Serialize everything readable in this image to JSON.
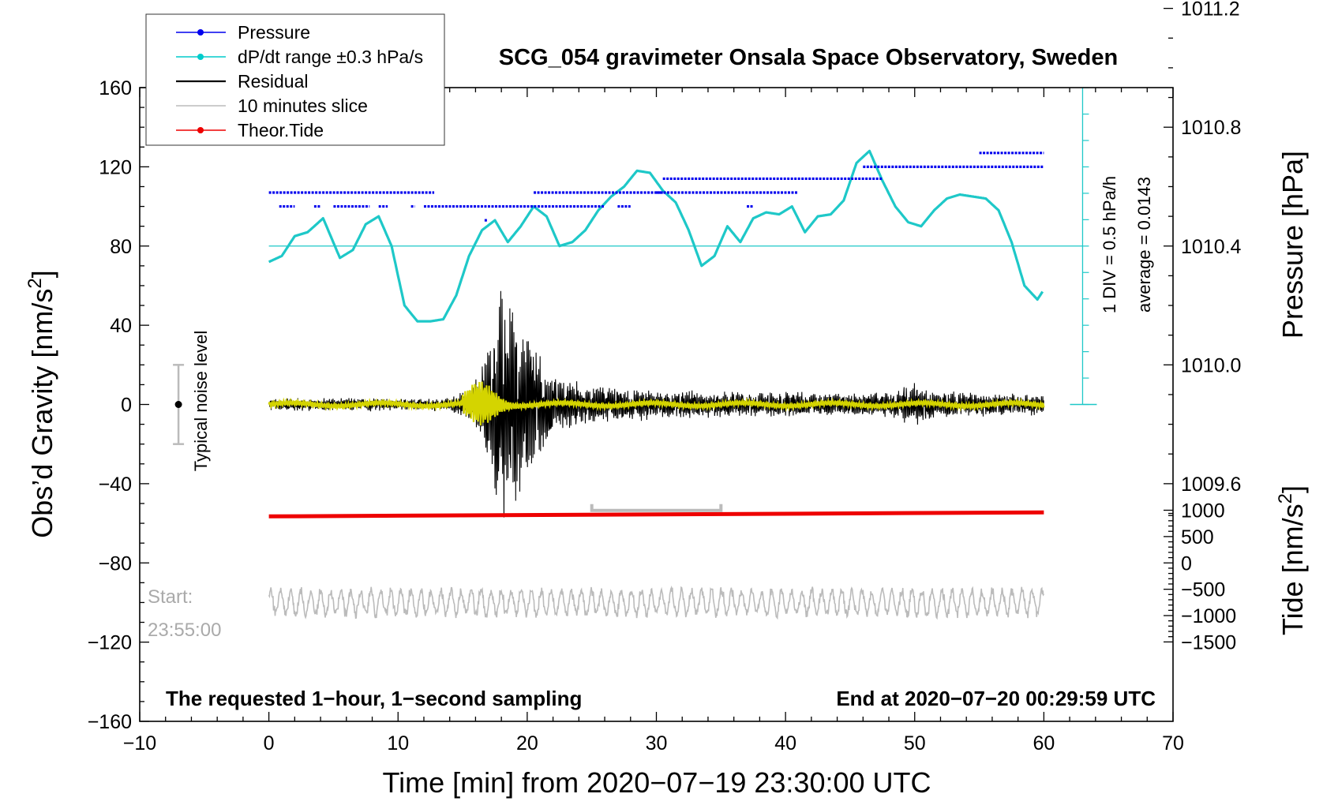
{
  "chart_data": {
    "type": "line",
    "title": "SCG_054 gravimeter Onsala Space Observatory, Sweden",
    "xlabel": "Time [min] from 2020−07−19 23:30:00 UTC",
    "ylabel_left": "Obs'd Gravity [nm/s²]",
    "ylabel_left_main": "Obs’d Gravity [nm/s",
    "ylabel_right_top": "Pressure [hPa]",
    "ylabel_right_bottom_main": "Tide [nm/s",
    "ylabel_right_bottom": "Tide [nm/s²]",
    "superscript": "2",
    "bracket_close": "]",
    "xlim": [
      -10,
      70
    ],
    "ylim_left": [
      -160,
      160
    ],
    "x_ticks": [
      "−10",
      "0",
      "10",
      "20",
      "30",
      "40",
      "50",
      "60",
      "70"
    ],
    "y_ticks_left": [
      "160",
      "120",
      "80",
      "40",
      "0",
      "−40",
      "−80",
      "−120",
      "−160"
    ],
    "pressure_ticks": [
      "1011.2",
      "1010.8",
      "1010.4",
      "1010.0",
      "1009.6"
    ],
    "tide_ticks": [
      "1000",
      "500",
      "0",
      "−500",
      "−1000",
      "−1500"
    ],
    "dpdt_scale_label": "1 DIV = 0.5 hPa/h",
    "dpdt_average_label": "average = 0.0143",
    "noise_label": "Typical noise level",
    "start_label_1": "Start:",
    "start_label_2": "23:55:00",
    "footer_left": "The requested 1−hour, 1−second sampling",
    "footer_right": "End at 2020−07−20 00:29:59 UTC",
    "legend": [
      {
        "label": "Pressure",
        "color": "#0000ee",
        "marker": true
      },
      {
        "label": "dP/dt range ±0.3 hPa/s",
        "color": "#00cccc",
        "marker": true
      },
      {
        "label": "Residual",
        "color": "#000000",
        "marker": false
      },
      {
        "label": "10 minutes slice",
        "color": "#bbbbbb",
        "marker": false
      },
      {
        "label": "Theor.Tide",
        "color": "#ee0000",
        "marker": true
      }
    ],
    "colors": {
      "pressure": "#0000ee",
      "dpdt": "#1ec8c8",
      "residual": "#000000",
      "filtered": "#d4d400",
      "slice": "#bbbbbb",
      "tide": "#ee0000"
    },
    "series": [
      {
        "name": "Pressure",
        "units": "gravity-axis position (nm/s²)",
        "segments": [
          {
            "x0": 0,
            "x1": 12.8,
            "y": 107
          },
          {
            "x0": 0.8,
            "x1": 2,
            "y": 100
          },
          {
            "x0": 3.5,
            "x1": 4,
            "y": 100
          },
          {
            "x0": 5,
            "x1": 7.8,
            "y": 100
          },
          {
            "x0": 8.5,
            "x1": 9.2,
            "y": 100
          },
          {
            "x0": 11,
            "x1": 11.3,
            "y": 100
          },
          {
            "x0": 12,
            "x1": 26,
            "y": 100
          },
          {
            "x0": 20.5,
            "x1": 30.5,
            "y": 107
          },
          {
            "x0": 27,
            "x1": 28,
            "y": 100
          },
          {
            "x0": 30,
            "x1": 41,
            "y": 107
          },
          {
            "x0": 30.5,
            "x1": 47.5,
            "y": 114
          },
          {
            "x0": 46,
            "x1": 60,
            "y": 120
          },
          {
            "x0": 55,
            "x1": 60,
            "y": 127
          },
          {
            "x0": 37,
            "x1": 37.5,
            "y": 100
          },
          {
            "x0": 16.7,
            "x1": 16.9,
            "y": 93
          }
        ]
      },
      {
        "name": "dP/dt range ±0.3 hPa/s",
        "x": [
          0,
          1,
          2,
          3,
          4.2,
          5.5,
          6.5,
          7.5,
          8.5,
          9.5,
          10.5,
          11.5,
          12.5,
          13.5,
          14.5,
          15.5,
          16.5,
          17.5,
          18.5,
          19.5,
          20.5,
          21.5,
          22.5,
          23.5,
          24.5,
          25.5,
          26.5,
          27.5,
          28.5,
          29.5,
          30.5,
          31.5,
          32.5,
          33.5,
          34.5,
          35.5,
          36.5,
          37.5,
          38.5,
          39.5,
          40.5,
          41.5,
          42.5,
          43.5,
          44.5,
          45.5,
          46.5,
          47.5,
          48.5,
          49.5,
          50.5,
          51.5,
          52.5,
          53.5,
          54.5,
          55.5,
          56.5,
          57.5,
          58.5,
          59.5,
          60
        ],
        "y": [
          72,
          75,
          85,
          87,
          94,
          74,
          78,
          91,
          95,
          80,
          50,
          42,
          42,
          43,
          55,
          75,
          88,
          93,
          82,
          90,
          100,
          95,
          80,
          82,
          88,
          98,
          105,
          110,
          118,
          117,
          108,
          102,
          88,
          70,
          75,
          90,
          82,
          94,
          97,
          96,
          100,
          87,
          95,
          96,
          103,
          122,
          128,
          113,
          100,
          92,
          90,
          98,
          104,
          106,
          105,
          104,
          98,
          82,
          60,
          53,
          58
        ]
      },
      {
        "name": "Residual",
        "x": [
          0,
          14,
          15.5,
          16.5,
          17.5,
          18,
          18.5,
          19.5,
          20.5,
          22,
          25,
          30,
          40,
          48,
          50,
          51,
          52,
          60
        ],
        "amplitude": [
          3,
          3,
          8,
          20,
          45,
          65,
          60,
          45,
          30,
          15,
          10,
          7,
          6,
          6,
          12,
          8,
          6,
          5
        ]
      },
      {
        "name": "Theor.Tide",
        "x": [
          0,
          60
        ],
        "y_gravity_axis": [
          -56.5,
          -54.5
        ]
      },
      {
        "name": "10 minutes slice",
        "x_range": [
          25,
          35
        ],
        "level": -100
      }
    ]
  }
}
